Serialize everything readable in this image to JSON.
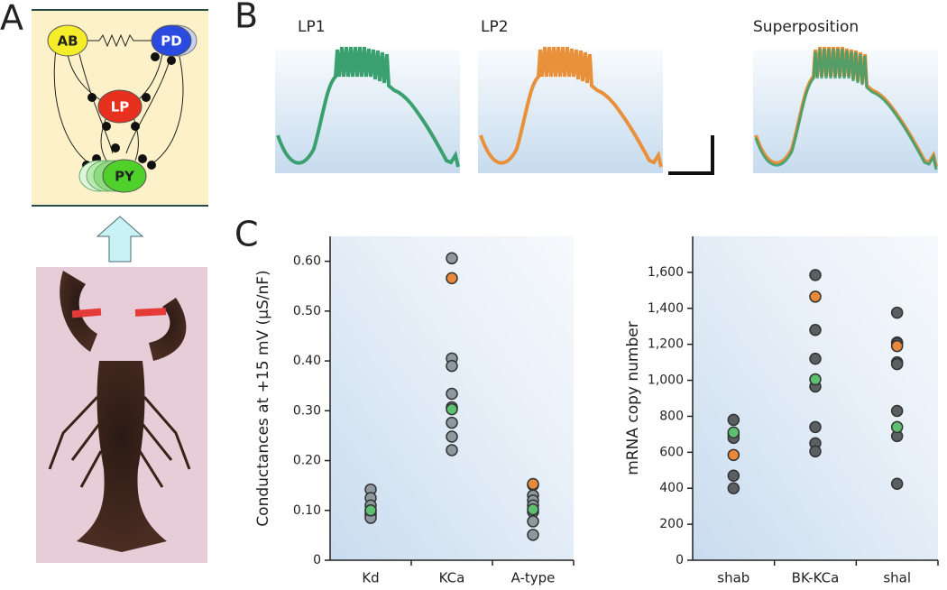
{
  "panel_labels": [
    "A",
    "B",
    "C"
  ],
  "circuit": {
    "nodes": [
      "AB",
      "PD",
      "LP",
      "PY"
    ]
  },
  "traces": {
    "titles": [
      "LP1",
      "LP2",
      "Superposition"
    ]
  },
  "chart_data": [
    {
      "type": "strip",
      "ylabel": "Conductances at +15 mV (µS/nF)",
      "categories": [
        "Kd",
        "KCa",
        "A-type"
      ],
      "series": [
        {
          "color": "#8d999e",
          "values": [
            [
              0.142,
              0.125,
              0.11,
              0.095,
              0.09,
              0.085
            ],
            [
              0.606,
              0.405,
              0.39,
              0.334,
              0.307,
              0.276,
              0.248,
              0.221
            ],
            [
              0.151,
              0.13,
              0.12,
              0.11,
              0.097,
              0.078,
              0.051
            ]
          ]
        },
        {
          "color": "#e8883a",
          "values": [
            [
              0.1
            ],
            [
              0.566
            ],
            [
              0.153
            ]
          ]
        },
        {
          "color": "#5cc070",
          "values": [
            [
              0.1
            ],
            [
              0.303
            ],
            [
              0.102
            ]
          ]
        }
      ],
      "ylim": [
        0,
        0.65
      ],
      "yticks": [
        0,
        {
          "value": 0.1,
          "label": "0.10"
        },
        {
          "value": 0.2,
          "label": "0.20"
        },
        {
          "value": 0.3,
          "label": "0.30"
        },
        {
          "value": 0.4,
          "label": "0.40"
        },
        {
          "value": 0.5,
          "label": "0.50"
        },
        {
          "value": 0.6,
          "label": "0.60"
        }
      ]
    },
    {
      "type": "strip",
      "ylabel": "mRNA copy number",
      "categories": [
        "shab",
        "BK-KCa",
        "shal"
      ],
      "series": [
        {
          "color": "#5a5f62",
          "values": [
            [
              780,
              700,
              680,
              470,
              400
            ],
            [
              1585,
              1280,
              1120,
              965,
              740,
              650,
              605
            ],
            [
              1376,
              1210,
              1204,
              1100,
              1090,
              830,
              690,
              425
            ]
          ]
        },
        {
          "color": "#e8883a",
          "values": [
            [
              585
            ],
            [
              1465
            ],
            [
              1190
            ]
          ]
        },
        {
          "color": "#5cc070",
          "values": [
            [
              710
            ],
            [
              1005
            ],
            [
              740
            ]
          ]
        }
      ],
      "ylim": [
        0,
        1800
      ],
      "yticks": [
        0,
        200,
        400,
        600,
        800,
        {
          "value": 1000,
          "label": "1,000"
        },
        {
          "value": 1200,
          "label": "1,200"
        },
        {
          "value": 1400,
          "label": "1,400"
        },
        {
          "value": 1600,
          "label": "1,600"
        }
      ]
    }
  ]
}
